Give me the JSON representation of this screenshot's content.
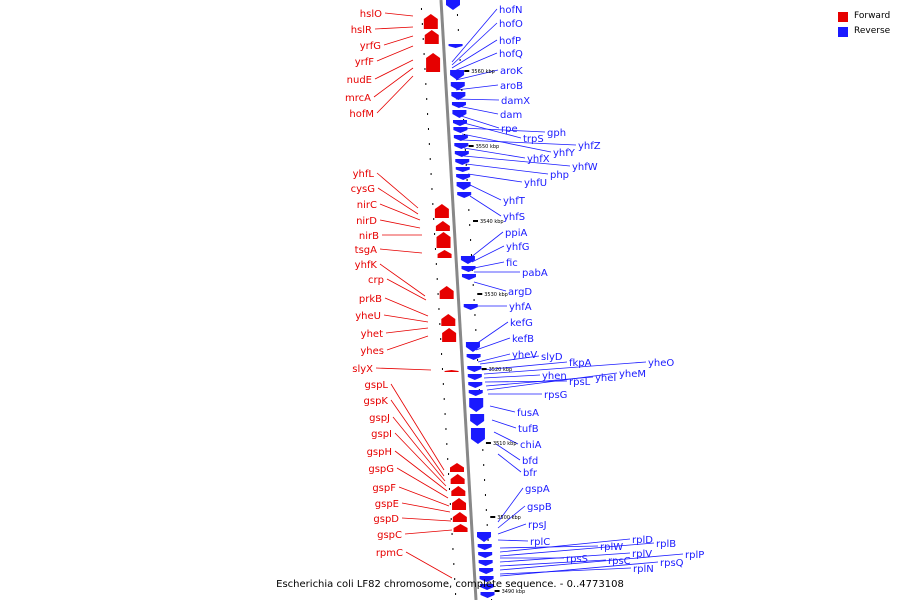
{
  "colors": {
    "forward": "#e60000",
    "reverse": "#1a1aff",
    "axis": "#888888"
  },
  "legend": {
    "forward": "Forward",
    "reverse": "Reverse"
  },
  "caption": "Escherichia coli LF82 chromosome, complete sequence. - 0..4773108",
  "scale_labels": [
    "3560 kbp",
    "3550 kbp",
    "3540 kbp",
    "3530 kbp",
    "3520 kbp",
    "3510 kbp",
    "3500 kbp",
    "3490 kbp"
  ],
  "forward_genes": [
    "hslO",
    "hslR",
    "yrfG",
    "yrfF",
    "nudE",
    "mrcA",
    "hofM",
    "yhfL",
    "cysG",
    "nirC",
    "nirD",
    "nirB",
    "tsgA",
    "yhfK",
    "crp",
    "prkB",
    "yheU",
    "yhet",
    "yhes",
    "slyX",
    "gspL",
    "gspK",
    "gspJ",
    "gspI",
    "gspH",
    "gspG",
    "gspF",
    "gspE",
    "gspD",
    "gspC",
    "rpmC"
  ],
  "reverse_genes": [
    "hofN",
    "hofO",
    "hofP",
    "hofQ",
    "aroK",
    "aroB",
    "damX",
    "dam",
    "rpe",
    "trpS",
    "gph",
    "yhfY",
    "yhfZ",
    "yhfX",
    "yhfW",
    "php",
    "yhfU",
    "yhfT",
    "yhfS",
    "ppiA",
    "yhfG",
    "fic",
    "pabA",
    "argD",
    "yhfA",
    "kefG",
    "kefB",
    "yheV",
    "slyD",
    "fkpA",
    "yheO",
    "yhen",
    "rpsL",
    "yheI",
    "yheM",
    "rpsG",
    "fusA",
    "tufB",
    "chiA",
    "bfd",
    "bfr",
    "gspA",
    "gspB",
    "rpsJ",
    "rplC",
    "rplW",
    "rplD",
    "rplB",
    "rpsS",
    "rplV",
    "rpsC",
    "rplP",
    "rplN",
    "rpsQ"
  ]
}
